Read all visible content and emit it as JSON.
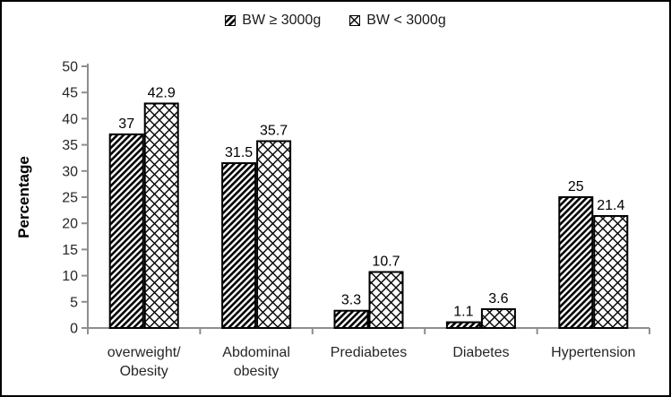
{
  "chart_data": {
    "type": "bar",
    "title": "",
    "xlabel": "",
    "ylabel": "Percentage",
    "ylim": [
      0,
      50
    ],
    "ytick_step": 5,
    "grid": false,
    "legend_position": "top-center",
    "data_labels": true,
    "categories": [
      [
        "overweight/",
        "Obesity"
      ],
      [
        "Abdominal",
        "obesity"
      ],
      [
        "Prediabetes"
      ],
      [
        "Diabetes"
      ],
      [
        "Hypertension"
      ]
    ],
    "series": [
      {
        "name": "BW ≥ 3000g",
        "pattern": "diagonal-hatch",
        "fill": "#ffffff",
        "hatch_color": "#000000",
        "values": [
          37,
          31.5,
          3.3,
          1.1,
          25
        ]
      },
      {
        "name": "BW < 3000g",
        "pattern": "diamond-crosshatch",
        "fill": "#ffffff",
        "hatch_color": "#000000",
        "values": [
          42.9,
          35.7,
          10.7,
          3.6,
          21.4
        ]
      }
    ],
    "colors": {
      "axis": "#8e8e8e",
      "text": "#262626",
      "bar_outline": "#000000",
      "frame_border": "#000000",
      "background": "#ffffff"
    }
  }
}
